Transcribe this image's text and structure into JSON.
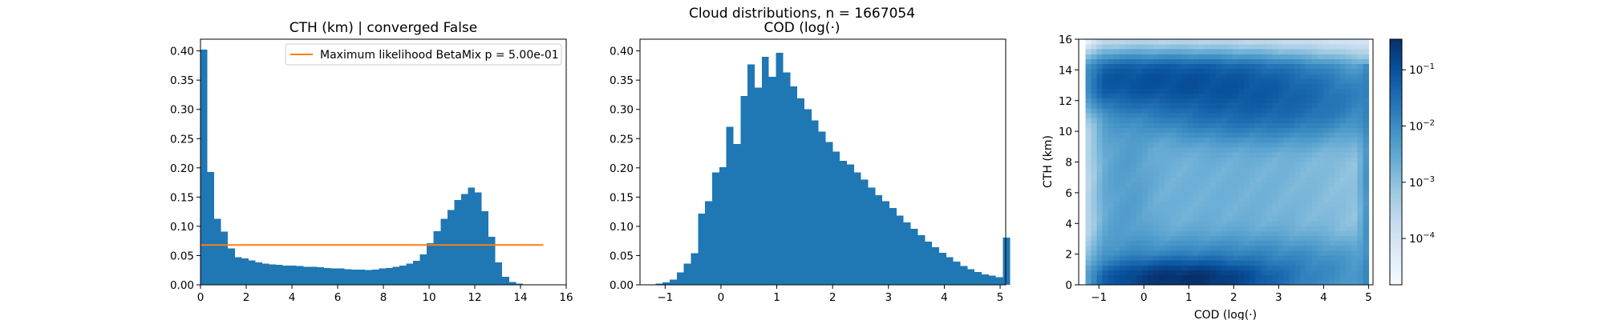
{
  "figure": {
    "suptitle": "Cloud distributions, n = 1667054"
  },
  "colors": {
    "bar": "#1f77b4",
    "line": "#ff7f0e"
  },
  "chart_data": [
    {
      "type": "bar",
      "title": "CTH (km) | converged False",
      "xlabel": "",
      "ylabel": "",
      "xlim": [
        0,
        16
      ],
      "ylim": [
        0,
        0.42
      ],
      "xticks": [
        0,
        2,
        4,
        6,
        8,
        10,
        12,
        14,
        16
      ],
      "yticks": [
        0.0,
        0.05,
        0.1,
        0.15,
        0.2,
        0.25,
        0.3,
        0.35,
        0.4
      ],
      "ytick_labels": [
        "0.00",
        "0.05",
        "0.10",
        "0.15",
        "0.20",
        "0.25",
        "0.30",
        "0.35",
        "0.40"
      ],
      "bin_start": 0,
      "bin_width": 0.3,
      "values": [
        0.402,
        0.193,
        0.113,
        0.091,
        0.062,
        0.047,
        0.045,
        0.042,
        0.038,
        0.036,
        0.035,
        0.034,
        0.033,
        0.033,
        0.032,
        0.031,
        0.031,
        0.03,
        0.029,
        0.028,
        0.028,
        0.027,
        0.026,
        0.026,
        0.025,
        0.026,
        0.028,
        0.029,
        0.031,
        0.033,
        0.036,
        0.041,
        0.052,
        0.071,
        0.092,
        0.113,
        0.128,
        0.145,
        0.155,
        0.166,
        0.158,
        0.126,
        0.082,
        0.038,
        0.014,
        0.005,
        0.002,
        0.001,
        0.0005,
        0.0002
      ],
      "line": {
        "label": "Maximum likelihood BetaMix p = 5.00e-01",
        "y": 0.068,
        "x": [
          0,
          15
        ]
      },
      "legend": "top-right"
    },
    {
      "type": "bar",
      "title": "COD (log(·)",
      "xlabel": "",
      "ylabel": "",
      "xlim": [
        -1.45,
        5.1
      ],
      "ylim": [
        0,
        0.42
      ],
      "xticks": [
        -1,
        0,
        1,
        2,
        3,
        4,
        5
      ],
      "yticks": [
        0.0,
        0.05,
        0.1,
        0.15,
        0.2,
        0.25,
        0.3,
        0.35,
        0.4
      ],
      "ytick_labels": [
        "0.00",
        "0.05",
        "0.10",
        "0.15",
        "0.20",
        "0.25",
        "0.30",
        "0.35",
        "0.40"
      ],
      "bin_start": -1.3,
      "bin_width": 0.127,
      "values": [
        0.001,
        0.002,
        0.004,
        0.009,
        0.021,
        0.036,
        0.054,
        0.122,
        0.143,
        0.192,
        0.201,
        0.27,
        0.241,
        0.323,
        0.377,
        0.337,
        0.39,
        0.356,
        0.397,
        0.363,
        0.339,
        0.319,
        0.3,
        0.281,
        0.262,
        0.244,
        0.228,
        0.212,
        0.206,
        0.192,
        0.18,
        0.166,
        0.153,
        0.143,
        0.131,
        0.118,
        0.107,
        0.096,
        0.085,
        0.074,
        0.064,
        0.055,
        0.047,
        0.04,
        0.032,
        0.027,
        0.022,
        0.018,
        0.016,
        0.013,
        0.081
      ],
      "legend": "none"
    },
    {
      "type": "heatmap",
      "title": "",
      "xlabel": "COD (log(·)",
      "ylabel": "CTH (km)",
      "xlim": [
        -1.45,
        5.1
      ],
      "ylim": [
        0,
        16
      ],
      "xticks": [
        -1,
        0,
        1,
        2,
        3,
        4,
        5
      ],
      "yticks": [
        0,
        2,
        4,
        6,
        8,
        10,
        12,
        14,
        16
      ],
      "nx": 50,
      "ny": 50,
      "x_range": [
        -1.3,
        5.0
      ],
      "y_range": [
        0,
        16
      ],
      "scale": "log",
      "colorbar": {
        "min": 1.5e-05,
        "max": 0.35,
        "ticks": [
          0.1,
          0.01,
          0.001,
          0.0001
        ]
      },
      "colormap": "Blues"
    }
  ]
}
